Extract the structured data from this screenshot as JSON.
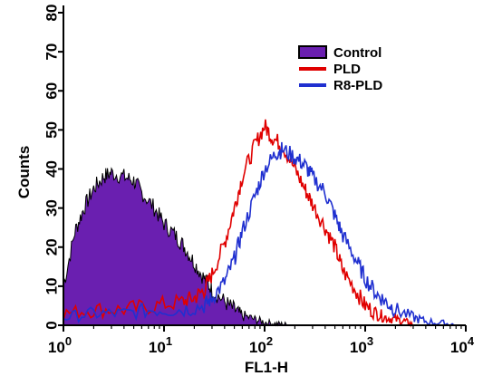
{
  "colors": {
    "control_fill": "#6a1fb0",
    "control_edge": "#000000",
    "pld": "#e00000",
    "r8_pld": "#2030d0",
    "axis": "#000000"
  },
  "chart_data": {
    "type": "area",
    "xlabel": "FL1-H",
    "ylabel": "Counts",
    "x_scale": "log10",
    "xlim": [
      1,
      10000
    ],
    "ylim": [
      0,
      80
    ],
    "x_ticks": [
      {
        "value": 1,
        "base": "10",
        "exp": "0"
      },
      {
        "value": 10,
        "base": "10",
        "exp": "1"
      },
      {
        "value": 100,
        "base": "10",
        "exp": "2"
      },
      {
        "value": 1000,
        "base": "10",
        "exp": "3"
      },
      {
        "value": 10000,
        "base": "10",
        "exp": "4"
      }
    ],
    "y_ticks": [
      "0",
      "10",
      "20",
      "30",
      "40",
      "50",
      "60",
      "70",
      "80"
    ],
    "legend": {
      "position": "top-right",
      "entries": [
        {
          "label": "Control",
          "style": "filled",
          "color": "#6a1fb0"
        },
        {
          "label": "PLD",
          "style": "line",
          "color": "#e00000"
        },
        {
          "label": "R8-PLD",
          "style": "line",
          "color": "#2030d0"
        }
      ]
    },
    "series": [
      {
        "name": "Control",
        "style": "filled",
        "x": [
          1,
          1.3,
          1.6,
          2,
          2.5,
          3,
          4,
          5,
          6,
          8,
          10,
          13,
          16,
          20,
          25,
          30,
          40,
          50,
          60,
          80,
          100,
          130,
          160,
          200
        ],
        "y": [
          10,
          24,
          30,
          35,
          38,
          39,
          38,
          37,
          34,
          30,
          26,
          23,
          20,
          16,
          12,
          9,
          6,
          4,
          2.5,
          1.5,
          0.8,
          0.4,
          0.2,
          0
        ]
      },
      {
        "name": "PLD",
        "style": "line",
        "x": [
          1,
          2,
          4,
          8,
          15,
          20,
          25,
          30,
          40,
          50,
          60,
          80,
          100,
          120,
          150,
          200,
          250,
          300,
          400,
          500,
          600,
          800,
          1000,
          1300,
          1600,
          2000,
          2500,
          3000
        ],
        "y": [
          3,
          4,
          4,
          5,
          6,
          7,
          9,
          13,
          21,
          30,
          38,
          46,
          51,
          48,
          46,
          40,
          35,
          31,
          25,
          20,
          14,
          9,
          5,
          3,
          2,
          1.5,
          1,
          0
        ]
      },
      {
        "name": "R8-PLD",
        "style": "line",
        "x": [
          1,
          2,
          4,
          8,
          15,
          25,
          30,
          40,
          50,
          60,
          80,
          100,
          130,
          150,
          200,
          250,
          300,
          400,
          500,
          600,
          800,
          1000,
          1300,
          1600,
          2000,
          3000,
          4000,
          6000,
          8000
        ],
        "y": [
          2,
          3,
          3,
          4,
          4,
          5,
          7,
          11,
          17,
          24,
          33,
          40,
          44,
          45,
          43,
          41,
          38,
          34,
          28,
          23,
          17,
          12,
          8,
          6,
          4,
          2,
          1,
          0.5,
          0
        ]
      }
    ]
  }
}
